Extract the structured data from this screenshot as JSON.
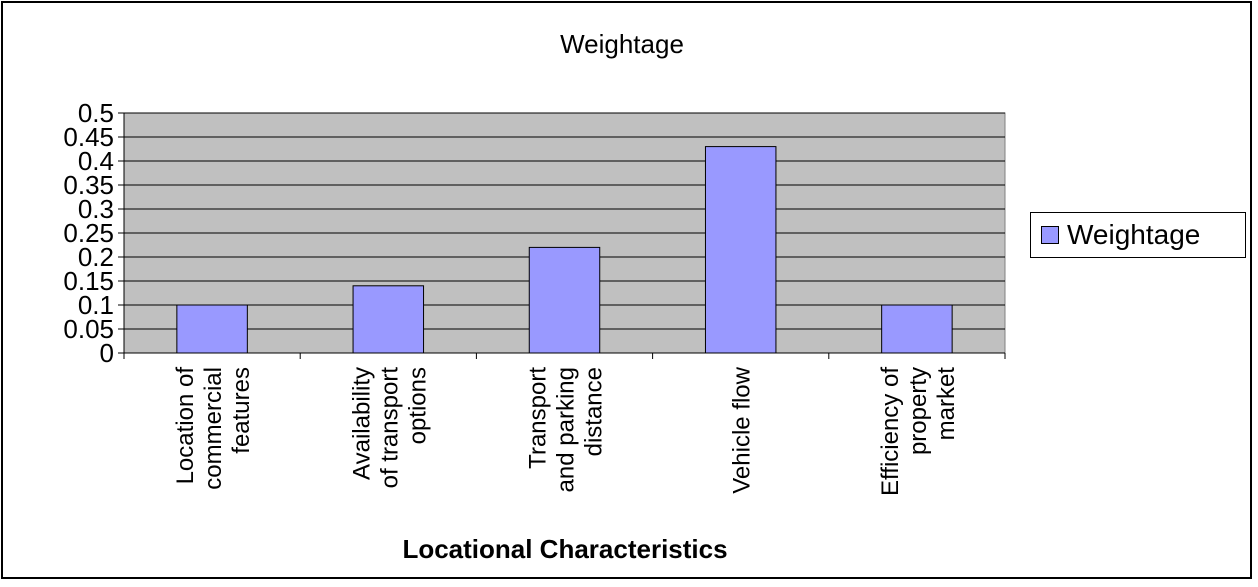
{
  "chart_data": {
    "type": "bar",
    "title": "Weightage",
    "xlabel": "Locational Characteristics",
    "ylabel": "",
    "categories": [
      [
        "Location of",
        "commercial",
        "features"
      ],
      [
        "Availability",
        "of transport",
        "options"
      ],
      [
        "Transport",
        "and parking",
        "distance"
      ],
      [
        "Vehicle flow"
      ],
      [
        "Efficiency of",
        "property",
        "market"
      ]
    ],
    "series": [
      {
        "name": "Weightage",
        "values": [
          0.1,
          0.14,
          0.22,
          0.43,
          0.1
        ]
      }
    ],
    "ylim": [
      0,
      0.5
    ],
    "yticks": [
      "0",
      "0.05",
      "0.1",
      "0.15",
      "0.2",
      "0.25",
      "0.3",
      "0.35",
      "0.4",
      "0.45",
      "0.5"
    ],
    "grid": true,
    "legend": "right",
    "colors": {
      "bar": "#9999ff",
      "plot_bg": "#c0c0c0",
      "border": "#000000"
    }
  }
}
